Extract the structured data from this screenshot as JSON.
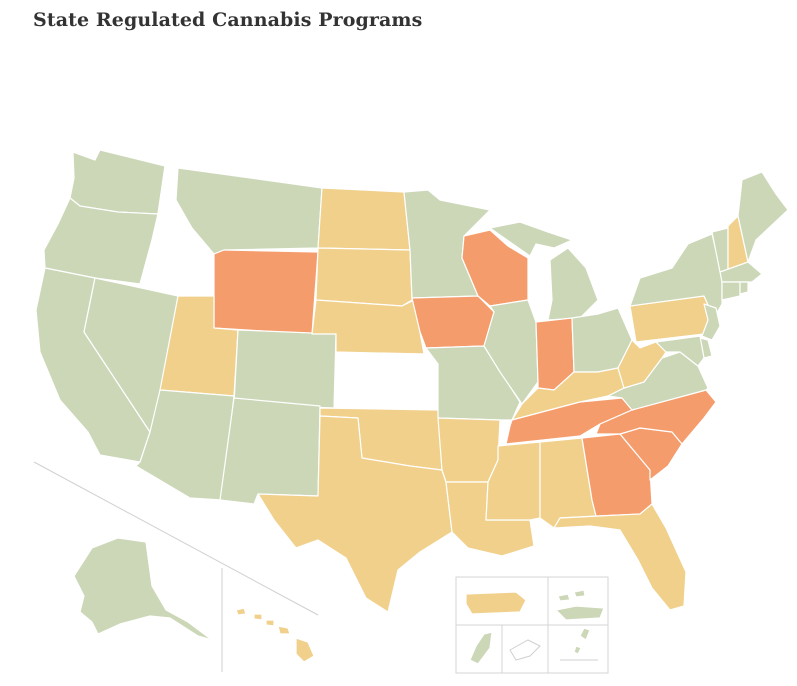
{
  "title": "State Regulated Cannabis Programs",
  "colors": {
    "green": "#cbd7b7",
    "yellow": "#f0d08b",
    "orange": "#f59c6c",
    "none": "#ffffff",
    "border": "#ffffff",
    "frame": "#d6d6d6"
  },
  "states": [
    {
      "name": "Washington",
      "cat": "green"
    },
    {
      "name": "Oregon",
      "cat": "green"
    },
    {
      "name": "California",
      "cat": "green"
    },
    {
      "name": "Nevada",
      "cat": "green"
    },
    {
      "name": "Idaho",
      "cat": "none"
    },
    {
      "name": "Montana",
      "cat": "green"
    },
    {
      "name": "Wyoming",
      "cat": "orange"
    },
    {
      "name": "Utah",
      "cat": "yellow"
    },
    {
      "name": "Colorado",
      "cat": "green"
    },
    {
      "name": "Arizona",
      "cat": "green"
    },
    {
      "name": "New Mexico",
      "cat": "green"
    },
    {
      "name": "North Dakota",
      "cat": "yellow"
    },
    {
      "name": "South Dakota",
      "cat": "yellow"
    },
    {
      "name": "Nebraska",
      "cat": "yellow"
    },
    {
      "name": "Kansas",
      "cat": "none"
    },
    {
      "name": "Oklahoma",
      "cat": "yellow"
    },
    {
      "name": "Texas",
      "cat": "yellow"
    },
    {
      "name": "Minnesota",
      "cat": "green"
    },
    {
      "name": "Iowa",
      "cat": "orange"
    },
    {
      "name": "Missouri",
      "cat": "green"
    },
    {
      "name": "Arkansas",
      "cat": "yellow"
    },
    {
      "name": "Louisiana",
      "cat": "yellow"
    },
    {
      "name": "Wisconsin",
      "cat": "orange"
    },
    {
      "name": "Illinois",
      "cat": "green"
    },
    {
      "name": "Michigan",
      "cat": "green"
    },
    {
      "name": "Indiana",
      "cat": "orange"
    },
    {
      "name": "Ohio",
      "cat": "green"
    },
    {
      "name": "Kentucky",
      "cat": "yellow"
    },
    {
      "name": "Tennessee",
      "cat": "orange"
    },
    {
      "name": "Mississippi",
      "cat": "yellow"
    },
    {
      "name": "Alabama",
      "cat": "yellow"
    },
    {
      "name": "Georgia",
      "cat": "orange"
    },
    {
      "name": "Florida",
      "cat": "yellow"
    },
    {
      "name": "South Carolina",
      "cat": "orange"
    },
    {
      "name": "North Carolina",
      "cat": "orange"
    },
    {
      "name": "Virginia",
      "cat": "green"
    },
    {
      "name": "West Virginia",
      "cat": "yellow"
    },
    {
      "name": "Pennsylvania",
      "cat": "yellow"
    },
    {
      "name": "New York",
      "cat": "green"
    },
    {
      "name": "Vermont",
      "cat": "green"
    },
    {
      "name": "New Hampshire",
      "cat": "yellow"
    },
    {
      "name": "Maine",
      "cat": "green"
    },
    {
      "name": "Massachusetts",
      "cat": "green"
    },
    {
      "name": "Rhode Island",
      "cat": "green"
    },
    {
      "name": "Connecticut",
      "cat": "green"
    },
    {
      "name": "New Jersey",
      "cat": "green"
    },
    {
      "name": "Delaware",
      "cat": "green"
    },
    {
      "name": "Maryland",
      "cat": "green"
    },
    {
      "name": "Alaska",
      "cat": "green"
    },
    {
      "name": "Hawaii",
      "cat": "yellow"
    }
  ],
  "territories": [
    {
      "name": "Puerto Rico",
      "cat": "yellow"
    },
    {
      "name": "U.S. Virgin Islands",
      "cat": "green"
    },
    {
      "name": "Guam",
      "cat": "green"
    },
    {
      "name": "American Samoa",
      "cat": "none"
    },
    {
      "name": "Northern Mariana Islands",
      "cat": "green"
    }
  ]
}
